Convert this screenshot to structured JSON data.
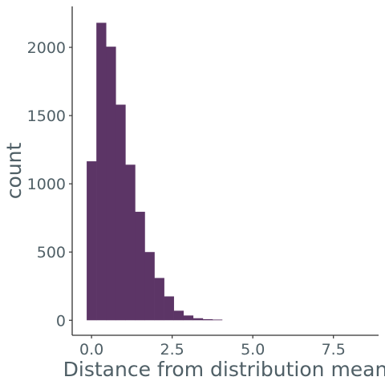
{
  "chart_data": {
    "type": "bar",
    "histogram": true,
    "xlabel": "Distance from distribution mean",
    "ylabel": "count",
    "xlim": [
      -0.6,
      8.9
    ],
    "ylim": [
      -110,
      2300
    ],
    "x_ticks": [
      0.0,
      2.5,
      5.0,
      7.5
    ],
    "x_tick_labels": [
      "0.0",
      "2.5",
      "5.0",
      "7.5"
    ],
    "y_ticks": [
      0,
      500,
      1000,
      1500,
      2000
    ],
    "y_tick_labels": [
      "0",
      "500",
      "1000",
      "1500",
      "2000"
    ],
    "bin_width": 0.3,
    "bins": [
      {
        "x0": -0.15,
        "x1": 0.15,
        "count": 1165
      },
      {
        "x0": 0.15,
        "x1": 0.45,
        "count": 2180
      },
      {
        "x0": 0.45,
        "x1": 0.75,
        "count": 2005
      },
      {
        "x0": 0.75,
        "x1": 1.05,
        "count": 1580
      },
      {
        "x0": 1.05,
        "x1": 1.35,
        "count": 1140
      },
      {
        "x0": 1.35,
        "x1": 1.65,
        "count": 795
      },
      {
        "x0": 1.65,
        "x1": 1.95,
        "count": 500
      },
      {
        "x0": 1.95,
        "x1": 2.25,
        "count": 310
      },
      {
        "x0": 2.25,
        "x1": 2.55,
        "count": 175
      },
      {
        "x0": 2.55,
        "x1": 2.85,
        "count": 70
      },
      {
        "x0": 2.85,
        "x1": 3.15,
        "count": 35
      },
      {
        "x0": 3.15,
        "x1": 3.45,
        "count": 15
      },
      {
        "x0": 3.45,
        "x1": 3.75,
        "count": 8
      },
      {
        "x0": 3.75,
        "x1": 4.05,
        "count": 5
      }
    ],
    "grid": false,
    "legend": "none",
    "bar_color": "#5c3566",
    "axis_color": "#333333",
    "text_color": "#4f5f66"
  }
}
